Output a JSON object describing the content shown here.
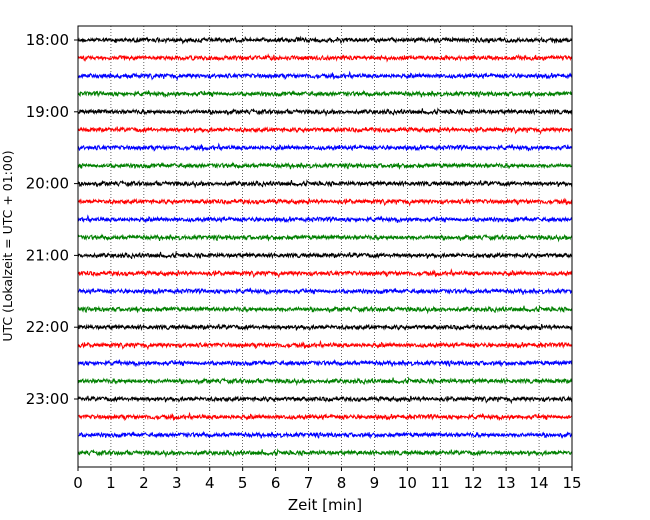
{
  "chart_data": {
    "type": "line",
    "xlabel": "Zeit  [min]",
    "ylabel": "UTC (Lokalzeit = UTC + 01:00)",
    "xlim": [
      0,
      15
    ],
    "x_ticks": [
      0,
      1,
      2,
      3,
      4,
      5,
      6,
      7,
      8,
      9,
      10,
      11,
      12,
      13,
      14,
      15
    ],
    "y_tick_labels": [
      "18:00",
      "19:00",
      "20:00",
      "21:00",
      "22:00",
      "23:00"
    ],
    "trace_start_time": "18:00",
    "trace_interval_minutes": 15,
    "trace_count": 24,
    "trace_colors": [
      "#000000",
      "#ff0000",
      "#0000ff",
      "#008000"
    ],
    "grid": "vertical-dotted",
    "legend": "none"
  }
}
